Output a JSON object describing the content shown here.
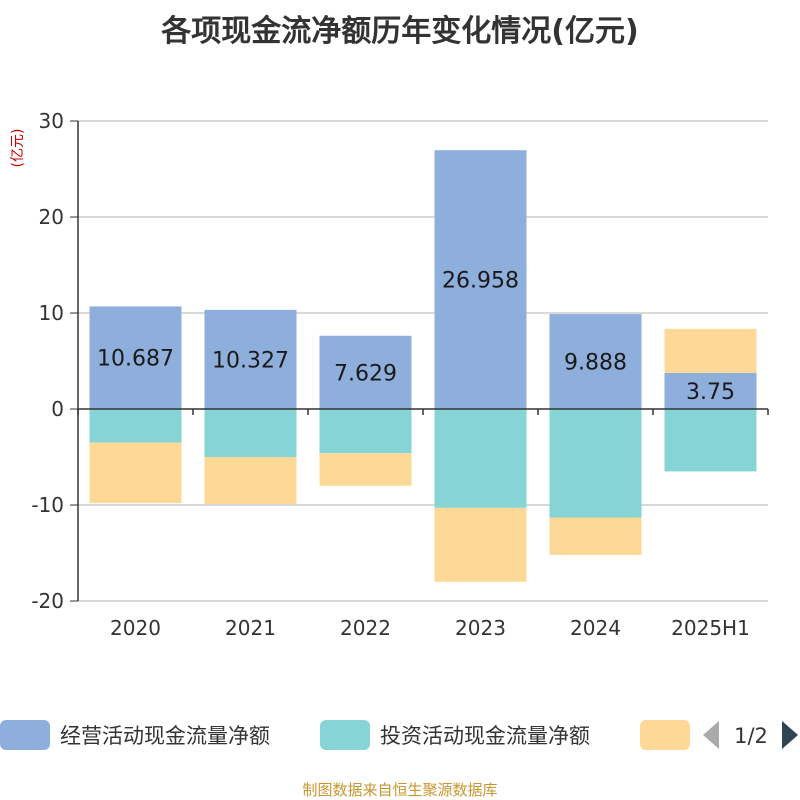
{
  "title": "各项现金流净额历年变化情况(亿元)",
  "source": "制图数据来自恒生聚源数据库",
  "chart_data": {
    "type": "bar",
    "stacked": true,
    "categories": [
      "2020",
      "2021",
      "2022",
      "2023",
      "2024",
      "2025H1"
    ],
    "series": [
      {
        "name": "经营活动现金流量净额",
        "color": "#8eaedb",
        "values": [
          10.687,
          10.327,
          7.629,
          26.958,
          9.888,
          3.75
        ]
      },
      {
        "name": "投资活动现金流量净额",
        "color": "#86d4d6",
        "values": [
          -3.5,
          -5.0,
          -4.6,
          -10.3,
          -11.3,
          -6.5
        ]
      },
      {
        "name": "",
        "color": "#fdd896",
        "values": [
          -6.3,
          -4.9,
          -3.4,
          -7.7,
          -3.9,
          4.6
        ]
      }
    ],
    "ylim": [
      -20,
      30
    ],
    "yticks": [
      -20,
      -10,
      0,
      10,
      20,
      30
    ],
    "ylabel": "(亿元)",
    "grid": true,
    "legend_position": "bottom",
    "legend_page": "1/2",
    "data_labels_series": 0
  },
  "icons": {
    "prev": "triangle-left-icon",
    "next": "triangle-right-icon"
  }
}
